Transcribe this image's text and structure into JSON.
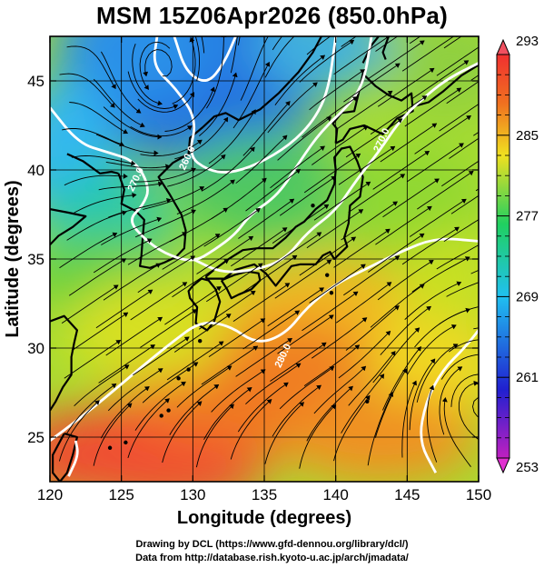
{
  "title": "MSM 15Z06Apr2026 (850.0hPa)",
  "credits": {
    "line1": "Drawing by DCL (https://www.gfd-dennou.org/library/dcl/)",
    "line2": "Data from http://database.rish.kyoto-u.ac.jp/arch/jmadata/"
  },
  "x_axis": {
    "title": "Longitude (degrees)",
    "range": [
      120,
      150
    ],
    "ticks": [
      120,
      125,
      130,
      135,
      140,
      145,
      150
    ]
  },
  "y_axis": {
    "title": "Latitude  (degrees)",
    "range": [
      22.5,
      47.5
    ],
    "ticks": [
      25,
      30,
      35,
      40,
      45
    ]
  },
  "colorbar": {
    "range": [
      253,
      293
    ],
    "labels": [
      "293",
      "285",
      "277",
      "269",
      "261",
      "253"
    ],
    "colors": [
      "#c020c0",
      "#2020d0",
      "#20c0f0",
      "#20d060",
      "#f0e020",
      "#f07020",
      "#f03030"
    ]
  },
  "contour_labels": [
    {
      "text": "260.0",
      "lon": 129.8,
      "lat": 40.6
    },
    {
      "text": "270.0",
      "lon": 126.2,
      "lat": 39.4
    },
    {
      "text": "270.0",
      "lon": 143.4,
      "lat": 41.6
    },
    {
      "text": "280.0",
      "lon": 136.5,
      "lat": 29.5
    }
  ]
}
